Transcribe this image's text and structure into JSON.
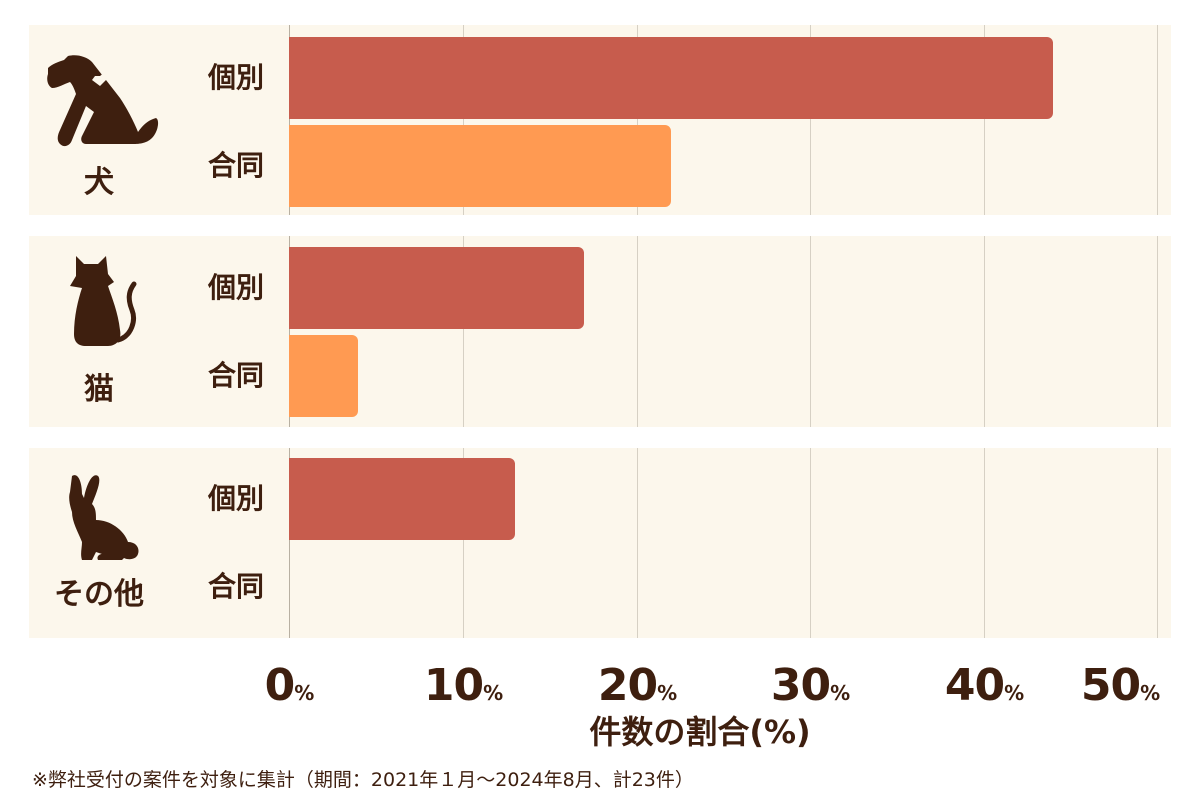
{
  "chart_data": {
    "type": "bar",
    "orientation": "horizontal",
    "title": "",
    "xlabel": "件数の割合(%)",
    "ylabel": "",
    "xlim": [
      0,
      50
    ],
    "xticks": [
      "0%",
      "10%",
      "20%",
      "30%",
      "40%",
      "50%"
    ],
    "grid": true,
    "categories": [
      "犬",
      "猫",
      "その他"
    ],
    "subcategories": [
      "個別",
      "合同"
    ],
    "series": [
      {
        "name": "個別",
        "color": "#c75c4d",
        "values": [
          44,
          17,
          13
        ]
      },
      {
        "name": "合同",
        "color": "#ff9a52",
        "values": [
          22,
          4,
          0
        ]
      }
    ],
    "note": "※弊社受付の案件を対象に集計（期間：2021年１月～2024年8月、計23件）"
  },
  "groups": [
    {
      "label": "犬",
      "icon": "dog-icon",
      "rows": [
        {
          "label": "個別",
          "value": 44
        },
        {
          "label": "合同",
          "value": 22
        }
      ]
    },
    {
      "label": "猫",
      "icon": "cat-icon",
      "rows": [
        {
          "label": "個別",
          "value": 17
        },
        {
          "label": "合同",
          "value": 4
        }
      ]
    },
    {
      "label": "その他",
      "icon": "rabbit-icon",
      "rows": [
        {
          "label": "個別",
          "value": 13
        },
        {
          "label": "合同",
          "value": 0
        }
      ]
    }
  ],
  "axis": {
    "ticks": [
      {
        "num": "0",
        "unit": "%"
      },
      {
        "num": "10",
        "unit": "%"
      },
      {
        "num": "20",
        "unit": "%"
      },
      {
        "num": "30",
        "unit": "%"
      },
      {
        "num": "40",
        "unit": "%"
      },
      {
        "num": "50",
        "unit": "%"
      }
    ],
    "title": "件数の割合(%)"
  },
  "footnote": "※弊社受付の案件を対象に集計（期間：2021年１月～2024年8月、計23件）",
  "colors": {
    "individual": "#c75c4d",
    "joint": "#ff9a52",
    "text": "#3e1f0f",
    "panel": "#fcf7ec"
  }
}
